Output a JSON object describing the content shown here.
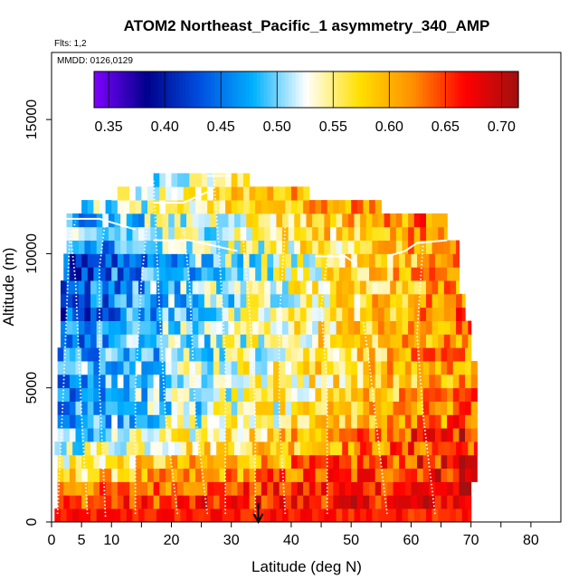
{
  "chart_data": {
    "type": "heatmap",
    "title": "ATOM2 Northeast_Pacific_1 asymmetry_340_AMP",
    "flights_note": "Flts: 1,2",
    "date_note": "MMDD: 0126,0129",
    "xlabel": "Latitude (deg N)",
    "ylabel": "Altitude (m)",
    "xlim": [
      0,
      85
    ],
    "ylim": [
      0,
      17500
    ],
    "x_tick_labels": [
      "0",
      "5",
      "10",
      "20",
      "30",
      "40",
      "50",
      "60",
      "70",
      "80"
    ],
    "x_tick_values": [
      0,
      5,
      10,
      20,
      30,
      40,
      50,
      60,
      70,
      80
    ],
    "x_minor_ticks": [
      15,
      25,
      45,
      55,
      65,
      75
    ],
    "y_tick_labels": [
      "0",
      "5000",
      "10000",
      "15000"
    ],
    "y_tick_values": [
      0,
      5000,
      10000,
      15000
    ],
    "colorbar": {
      "labels": [
        "0.35",
        "0.40",
        "0.45",
        "0.50",
        "0.55",
        "0.60",
        "0.65",
        "0.70"
      ],
      "values": [
        0.35,
        0.4,
        0.45,
        0.5,
        0.55,
        0.6,
        0.65,
        0.7
      ],
      "range": [
        0.337,
        0.715
      ],
      "colors": [
        "#7f00ff",
        "#00008b",
        "#0050e0",
        "#00b0ff",
        "#ffffff",
        "#ffe000",
        "#ff9000",
        "#ff0000",
        "#a01010"
      ]
    },
    "marker": {
      "latitude": 34.5,
      "description": "arrow-down"
    },
    "bands": [
      {
        "alt": [
          0,
          500
        ],
        "lat": [
          0.5,
          70
        ],
        "v0": 0.66,
        "v1": 0.66,
        "noise": 0.02
      },
      {
        "alt": [
          500,
          1000
        ],
        "lat": [
          1,
          70
        ],
        "v0": 0.64,
        "v1": 0.68,
        "noise": 0.04
      },
      {
        "alt": [
          1000,
          1500
        ],
        "lat": [
          1,
          70
        ],
        "v0": 0.62,
        "v1": 0.68,
        "noise": 0.04
      },
      {
        "alt": [
          1500,
          2000
        ],
        "lat": [
          1,
          71
        ],
        "v0": 0.57,
        "v1": 0.68,
        "noise": 0.05
      },
      {
        "alt": [
          2000,
          2500
        ],
        "lat": [
          1,
          71
        ],
        "v0": 0.55,
        "v1": 0.67,
        "noise": 0.05
      },
      {
        "alt": [
          2500,
          3000
        ],
        "lat": [
          0.5,
          71
        ],
        "v0": 0.52,
        "v1": 0.66,
        "noise": 0.05
      },
      {
        "alt": [
          3000,
          3500
        ],
        "lat": [
          1,
          71
        ],
        "v0": 0.48,
        "v1": 0.68,
        "noise": 0.05
      },
      {
        "alt": [
          3500,
          4000
        ],
        "lat": [
          1,
          71
        ],
        "v0": 0.47,
        "v1": 0.64,
        "noise": 0.05
      },
      {
        "alt": [
          4000,
          4500
        ],
        "lat": [
          1,
          71
        ],
        "v0": 0.46,
        "v1": 0.63,
        "noise": 0.05
      },
      {
        "alt": [
          4500,
          5000
        ],
        "lat": [
          1,
          71
        ],
        "v0": 0.46,
        "v1": 0.63,
        "noise": 0.05
      },
      {
        "alt": [
          5000,
          5500
        ],
        "lat": [
          1,
          71
        ],
        "v0": 0.47,
        "v1": 0.62,
        "noise": 0.05
      },
      {
        "alt": [
          5500,
          6000
        ],
        "lat": [
          1,
          71
        ],
        "v0": 0.48,
        "v1": 0.62,
        "noise": 0.05
      },
      {
        "alt": [
          6000,
          6500
        ],
        "lat": [
          1,
          70
        ],
        "v0": 0.45,
        "v1": 0.63,
        "noise": 0.05
      },
      {
        "alt": [
          6500,
          7000
        ],
        "lat": [
          1.5,
          70
        ],
        "v0": 0.45,
        "v1": 0.63,
        "noise": 0.05
      },
      {
        "alt": [
          7000,
          7500
        ],
        "lat": [
          1.5,
          70
        ],
        "v0": 0.45,
        "v1": 0.63,
        "noise": 0.05
      },
      {
        "alt": [
          7500,
          8000
        ],
        "lat": [
          1.5,
          69
        ],
        "v0": 0.43,
        "v1": 0.63,
        "noise": 0.05
      },
      {
        "alt": [
          8000,
          8500
        ],
        "lat": [
          1.5,
          69
        ],
        "v0": 0.43,
        "v1": 0.63,
        "noise": 0.05
      },
      {
        "alt": [
          8500,
          9000
        ],
        "lat": [
          1.5,
          68
        ],
        "v0": 0.44,
        "v1": 0.62,
        "noise": 0.05
      },
      {
        "alt": [
          9000,
          9500
        ],
        "lat": [
          2,
          68
        ],
        "v0": 0.43,
        "v1": 0.62,
        "noise": 0.05
      },
      {
        "alt": [
          9500,
          10000
        ],
        "lat": [
          2,
          68
        ],
        "v0": 0.42,
        "v1": 0.62,
        "noise": 0.05
      },
      {
        "alt": [
          10000,
          10500
        ],
        "lat": [
          2.5,
          68
        ],
        "v0": 0.46,
        "v1": 0.62,
        "noise": 0.05
      },
      {
        "alt": [
          10500,
          11000
        ],
        "lat": [
          2.5,
          66
        ],
        "v0": 0.48,
        "v1": 0.62,
        "noise": 0.05
      },
      {
        "alt": [
          11000,
          11500
        ],
        "lat": [
          2.5,
          66
        ],
        "v0": 0.47,
        "v1": 0.64,
        "noise": 0.05
      },
      {
        "alt": [
          11500,
          12000
        ],
        "lat": [
          5,
          55
        ],
        "v0": 0.5,
        "v1": 0.63,
        "noise": 0.04
      },
      {
        "alt": [
          12000,
          12500
        ],
        "lat": [
          10,
          43
        ],
        "v0": 0.52,
        "v1": 0.61,
        "noise": 0.04
      },
      {
        "alt": [
          12500,
          13000
        ],
        "lat": [
          17,
          33
        ],
        "v0": 0.5,
        "v1": 0.58,
        "noise": 0.03
      }
    ],
    "profiles": [
      [
        [
          1,
          300
        ],
        [
          2,
          5000
        ],
        [
          3,
          10500
        ],
        [
          4,
          11200
        ]
      ],
      [
        [
          6,
          300
        ],
        [
          5,
          4000
        ],
        [
          4,
          9000
        ],
        [
          3,
          11000
        ]
      ],
      [
        [
          9,
          200
        ],
        [
          8,
          5000
        ],
        [
          8,
          9500
        ],
        [
          9,
          11300
        ]
      ],
      [
        [
          14,
          300
        ],
        [
          14,
          5000
        ],
        [
          15,
          9000
        ],
        [
          16,
          11200
        ]
      ],
      [
        [
          21,
          300
        ],
        [
          19,
          4000
        ],
        [
          18,
          8000
        ],
        [
          17,
          12800
        ]
      ],
      [
        [
          26,
          300
        ],
        [
          24,
          4000
        ],
        [
          23,
          9000
        ],
        [
          22,
          11000
        ]
      ],
      [
        [
          29,
          300
        ],
        [
          29,
          6000
        ],
        [
          28,
          10000
        ],
        [
          27,
          13000
        ]
      ],
      [
        [
          34,
          300
        ],
        [
          34,
          4000
        ],
        [
          33,
          8000
        ],
        [
          32,
          10500
        ]
      ],
      [
        [
          39,
          300
        ],
        [
          38,
          4000
        ],
        [
          38,
          7500
        ],
        [
          39,
          11000
        ]
      ],
      [
        [
          46,
          300
        ],
        [
          46,
          5000
        ],
        [
          45,
          8000
        ],
        [
          46,
          9800
        ]
      ],
      [
        [
          56,
          300
        ],
        [
          54,
          4000
        ],
        [
          53,
          6000
        ],
        [
          52,
          7500
        ]
      ],
      [
        [
          64,
          300
        ],
        [
          62,
          4000
        ],
        [
          61,
          7000
        ],
        [
          62,
          10400
        ]
      ]
    ],
    "white_segments": [
      [
        [
          1,
          11300
        ],
        [
          8,
          11300
        ],
        [
          11,
          11100
        ],
        [
          14,
          10900
        ]
      ],
      [
        [
          17,
          10500
        ],
        [
          23,
          10500
        ],
        [
          27,
          10300
        ],
        [
          31,
          10100
        ]
      ],
      [
        [
          44,
          9900
        ],
        [
          49,
          9900
        ],
        [
          51,
          9600
        ]
      ],
      [
        [
          56,
          9900
        ],
        [
          59,
          10100
        ],
        [
          61,
          10400
        ],
        [
          66,
          10500
        ]
      ],
      [
        [
          26,
          12900
        ],
        [
          30,
          12900
        ]
      ],
      [
        [
          17,
          11900
        ],
        [
          22,
          11900
        ],
        [
          26,
          12300
        ]
      ]
    ]
  }
}
